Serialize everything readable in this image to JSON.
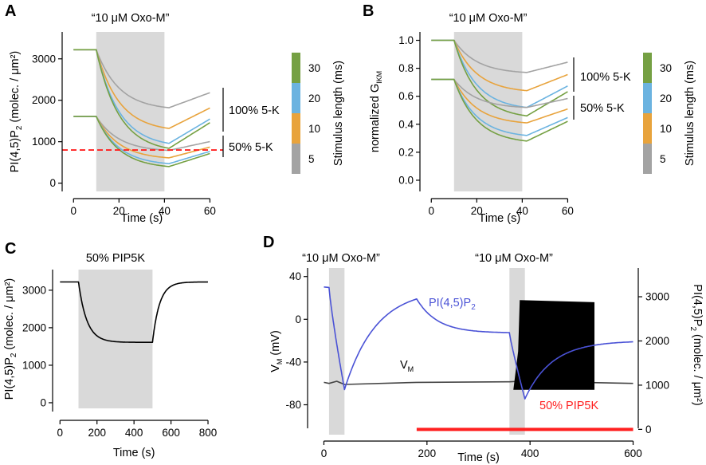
{
  "colors": {
    "shade": "#d9d9d9",
    "gray": "#a3a3a3",
    "orange": "#e8a33c",
    "blue": "#6bb3e0",
    "green": "#75a043",
    "red": "#ff2020",
    "pip2_blue": "#4a52d6",
    "black": "#000000"
  },
  "chart_data": [
    {
      "panel": "A",
      "type": "line",
      "title": "“10 μM Oxo-M”",
      "xlabel": "Time (s)",
      "ylabel": "PI(4,5)P",
      "ylabel_sub": "2",
      "ylabel_suffix": " (molec. / μm²)",
      "xlim": [
        -5,
        63
      ],
      "ylim": [
        -200,
        3650
      ],
      "xticks": [
        0,
        20,
        40,
        60
      ],
      "yticks": [
        0,
        1000,
        2000,
        3000
      ],
      "shade": [
        10,
        40
      ],
      "threshold": 800,
      "group_labels": [
        "100% 5-K",
        "50% 5-K"
      ],
      "groups": [
        {
          "start": 3220,
          "minima": [
            1820,
            1320,
            960,
            840
          ]
        },
        {
          "start": 1610,
          "minima": [
            790,
            610,
            470,
            400
          ]
        }
      ],
      "curve_shape": {
        "t_start": 0,
        "t_rise": 10,
        "t_min": 42,
        "t_end": 60,
        "recovery_fraction": 0.26
      }
    },
    {
      "panel": "B",
      "type": "line",
      "title": "“10 μM Oxo-M”",
      "xlabel": "Time (s)",
      "ylabel": "normalized G",
      "ylabel_sub": "IKM",
      "xlim": [
        -5,
        63
      ],
      "ylim": [
        -0.08,
        1.06
      ],
      "xticks": [
        0,
        20,
        40,
        60
      ],
      "yticks": [
        0.0,
        0.2,
        0.4,
        0.6,
        0.8,
        1.0
      ],
      "ytick_labels": [
        "0.0",
        "0.2",
        "0.4",
        "0.6",
        "0.8",
        "1.0"
      ],
      "shade": [
        10,
        40
      ],
      "group_labels": [
        "100% 5-K",
        "50% 5-K"
      ],
      "groups": [
        {
          "start": 1.0,
          "minima": [
            0.77,
            0.64,
            0.52,
            0.46
          ]
        },
        {
          "start": 0.72,
          "minima": [
            0.52,
            0.41,
            0.32,
            0.28
          ]
        }
      ],
      "curve_shape": {
        "t_start": 0,
        "t_rise": 10,
        "t_min": 42,
        "t_end": 60,
        "recovery_fraction": 0.32
      }
    },
    {
      "panel": "C",
      "type": "line",
      "title": "50% PIP5K",
      "xlabel": "Time (s)",
      "ylabel": "PI(4,5)P",
      "ylabel_sub": "2",
      "ylabel_suffix": " (molec. / μm²)",
      "xlim": [
        -40,
        830
      ],
      "ylim": [
        -150,
        3550
      ],
      "xticks": [
        0,
        200,
        400,
        600,
        800
      ],
      "yticks": [
        0,
        1000,
        2000,
        3000
      ],
      "shade": [
        100,
        500
      ],
      "series": [
        {
          "name": "PI(4,5)P2",
          "baseline": 3220,
          "plateau": 1610,
          "t_on": 100,
          "t_off": 500,
          "t_end": 800,
          "tau_down": 45,
          "tau_up": 38
        }
      ]
    },
    {
      "panel": "D",
      "type": "line",
      "title_left": "“10 μM Oxo-M”",
      "title_right": "“10 μM Oxo-M”",
      "xlabel": "Time (s)",
      "ylabel_left": "V",
      "ylabel_left_sub": "M",
      "ylabel_left_suffix": " (mV)",
      "ylabel_right": "PI(4,5)P",
      "ylabel_right_sub": "2",
      "ylabel_right_suffix": " (molec. / μm²)",
      "xlim": [
        -10,
        610
      ],
      "ylim_left": [
        -108,
        48
      ],
      "ylim_right": [
        -120,
        3650
      ],
      "xticks": [
        0,
        200,
        400,
        600
      ],
      "yticks_left": [
        -80,
        -40,
        0,
        40
      ],
      "yticks_right": [
        0,
        1000,
        2000,
        3000
      ],
      "shades": [
        [
          10,
          40
        ],
        [
          360,
          390
        ]
      ],
      "pip5k_bar": {
        "label": "50% PIP5K",
        "x": [
          180,
          600
        ],
        "y_right": 0
      },
      "series": [
        {
          "name": "PI(4,5)P",
          "name_sub": "2",
          "axis": "right",
          "points": [
            [
              0,
              3220
            ],
            [
              10,
              3210
            ],
            [
              40,
              900
            ],
            [
              180,
              2950
            ],
            [
              360,
              2180
            ],
            [
              390,
              690
            ],
            [
              600,
              1980
            ]
          ]
        },
        {
          "name": "V",
          "name_sub": "M",
          "axis": "left",
          "baseline": -60,
          "firing_window": [
            380,
            525
          ],
          "firing_top": 18,
          "firing_bottom": -66
        }
      ]
    },
    {
      "panel": "A/B legend",
      "type": "colorbar",
      "label": "Stimulus length (ms)",
      "ticks": [
        "5",
        "10",
        "20",
        "30"
      ]
    }
  ]
}
